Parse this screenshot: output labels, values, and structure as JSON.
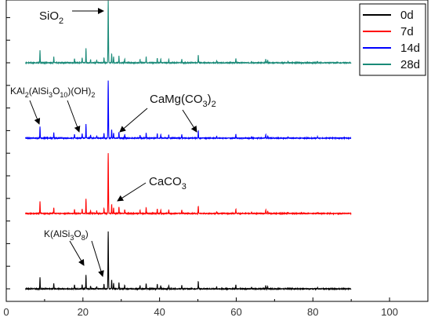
{
  "chart_data": {
    "type": "line",
    "xlim": [
      0,
      110
    ],
    "x_ticks": [
      "0",
      "20",
      "40",
      "60",
      "80",
      "100"
    ],
    "y_ticks_shown": false,
    "grid": false,
    "legend_placement": "top-right",
    "series": [
      {
        "name": "0d",
        "color": "#000000",
        "baseline": 0.5,
        "scale": 1.0
      },
      {
        "name": "7d",
        "color": "#ff0000",
        "baseline": 3.5,
        "scale": 1.05
      },
      {
        "name": "14d",
        "color": "#0000ff",
        "baseline": 6.5,
        "scale": 1.0
      },
      {
        "name": "28d",
        "color": "#1a8a78",
        "baseline": 9.5,
        "scale": 1.08
      }
    ],
    "x_range": [
      5,
      90
    ],
    "peaks": [
      {
        "x": 8.8,
        "h": 0.45
      },
      {
        "x": 12.4,
        "h": 0.22
      },
      {
        "x": 17.8,
        "h": 0.16
      },
      {
        "x": 19.8,
        "h": 0.18
      },
      {
        "x": 20.8,
        "h": 0.55
      },
      {
        "x": 22.0,
        "h": 0.12
      },
      {
        "x": 23.6,
        "h": 0.1
      },
      {
        "x": 25.5,
        "h": 0.2
      },
      {
        "x": 26.6,
        "h": 2.3
      },
      {
        "x": 27.5,
        "h": 0.35
      },
      {
        "x": 28.0,
        "h": 0.22
      },
      {
        "x": 29.4,
        "h": 0.25
      },
      {
        "x": 30.9,
        "h": 0.15
      },
      {
        "x": 34.9,
        "h": 0.12
      },
      {
        "x": 36.5,
        "h": 0.22
      },
      {
        "x": 39.4,
        "h": 0.18
      },
      {
        "x": 40.3,
        "h": 0.14
      },
      {
        "x": 42.4,
        "h": 0.14
      },
      {
        "x": 45.8,
        "h": 0.14
      },
      {
        "x": 50.1,
        "h": 0.3
      },
      {
        "x": 54.9,
        "h": 0.08
      },
      {
        "x": 59.9,
        "h": 0.16
      },
      {
        "x": 64.0,
        "h": 0.06
      },
      {
        "x": 67.7,
        "h": 0.14
      },
      {
        "x": 68.2,
        "h": 0.1
      },
      {
        "x": 73.5,
        "h": 0.05
      },
      {
        "x": 81.2,
        "h": 0.05
      }
    ],
    "annotations": [
      {
        "id": "sio2",
        "pre": "SiO",
        "sub": "2",
        "post": ""
      },
      {
        "id": "kal2",
        "html_parts": [
          "KAl",
          "2",
          "(AlSi",
          "3",
          "O",
          "10",
          ")(OH)",
          "2"
        ]
      },
      {
        "id": "camg",
        "html_parts": [
          "CaMg(CO",
          "3",
          ")",
          "2"
        ]
      },
      {
        "id": "caco3",
        "html_parts": [
          "CaCO",
          "3"
        ]
      },
      {
        "id": "kalsi",
        "html_parts": [
          "K(AlSi",
          "3",
          "O",
          "8",
          ")"
        ]
      }
    ]
  }
}
